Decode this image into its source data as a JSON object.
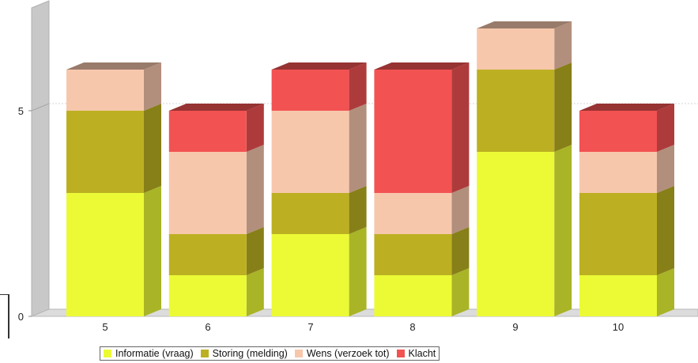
{
  "chart_data": {
    "type": "bar",
    "stacked": true,
    "three_d": true,
    "categories": [
      "5",
      "6",
      "7",
      "8",
      "9",
      "10"
    ],
    "series": [
      {
        "name": "Informatie (vraag)",
        "color": "#EBFA35",
        "values": [
          3,
          1,
          2,
          1,
          4,
          1
        ]
      },
      {
        "name": "Storing (melding)",
        "color": "#BCB022",
        "values": [
          2,
          1,
          1,
          1,
          2,
          2
        ]
      },
      {
        "name": "Wens (verzoek tot)",
        "color": "#F7C7AC",
        "values": [
          1,
          2,
          2,
          1,
          1,
          1
        ]
      },
      {
        "name": "Klacht",
        "color": "#F25252",
        "values": [
          0,
          1,
          1,
          3,
          0,
          1
        ]
      }
    ],
    "y_ticks": [
      "0",
      "5"
    ],
    "ylim": [
      0,
      7.5
    ],
    "grid": true,
    "legend_position": "bottom"
  }
}
